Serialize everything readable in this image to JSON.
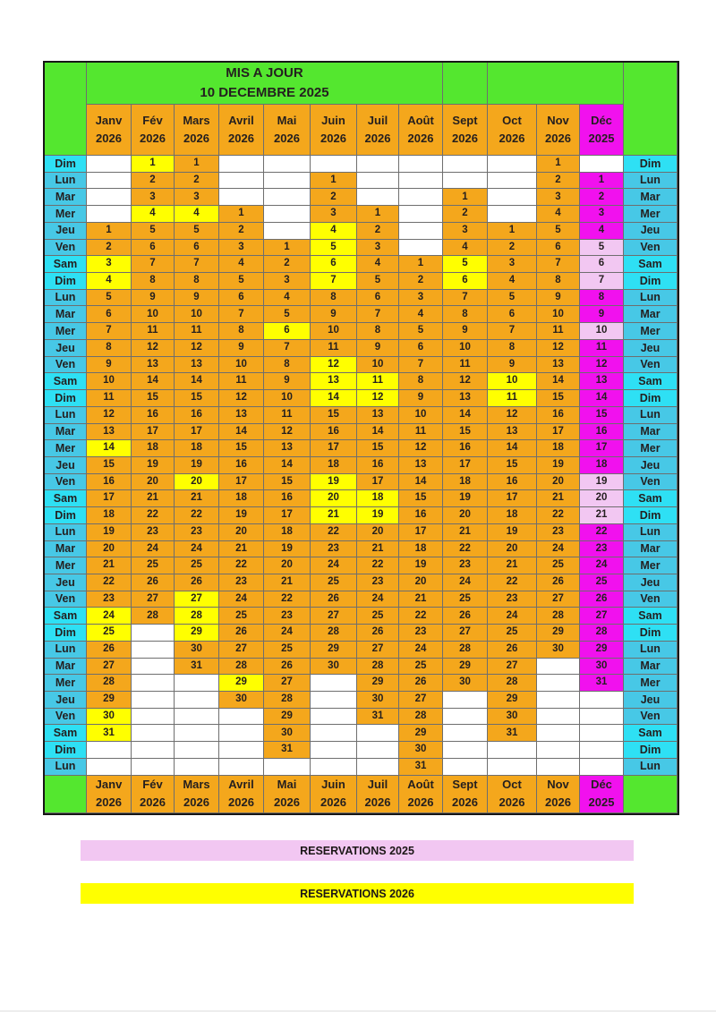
{
  "header": {
    "title_line1": "MIS A JOUR",
    "title_line2": "10 DECEMBRE 2025"
  },
  "months": [
    {
      "name": "Janv",
      "year": "2026",
      "bg": "orange"
    },
    {
      "name": "Fév",
      "year": "2026",
      "bg": "orange"
    },
    {
      "name": "Mars",
      "year": "2026",
      "bg": "orange"
    },
    {
      "name": "Avril",
      "year": "2026",
      "bg": "orange"
    },
    {
      "name": "Mai",
      "year": "2026",
      "bg": "orange"
    },
    {
      "name": "Juin",
      "year": "2026",
      "bg": "orange"
    },
    {
      "name": "Juil",
      "year": "2026",
      "bg": "orange"
    },
    {
      "name": "Août",
      "year": "2026",
      "bg": "orange"
    },
    {
      "name": "Sept",
      "year": "2026",
      "bg": "orange"
    },
    {
      "name": "Oct",
      "year": "2026",
      "bg": "orange"
    },
    {
      "name": "Nov",
      "year": "2026",
      "bg": "orange"
    },
    {
      "name": "Déc",
      "year": "2025",
      "bg": "magenta"
    }
  ],
  "color_legend_codes": {
    "o": "orange available 2026",
    "y": "yellow reservation 2026",
    "m": "magenta december 2025",
    "p": "light pink reservation 2025",
    "empty": "white out of month"
  },
  "rows": [
    {
      "d": "Dim",
      "c": [
        "",
        "1y",
        "1o",
        "",
        "",
        "",
        "",
        "",
        "",
        "",
        "1o",
        ""
      ]
    },
    {
      "d": "Lun",
      "c": [
        "",
        "2o",
        "2o",
        "",
        "",
        "1o",
        "",
        "",
        "",
        "",
        "2o",
        "1m"
      ]
    },
    {
      "d": "Mar",
      "c": [
        "",
        "3o",
        "3o",
        "",
        "",
        "2o",
        "",
        "",
        "1o",
        "",
        "3o",
        "2m"
      ]
    },
    {
      "d": "Mer",
      "c": [
        "",
        "4y",
        "4y",
        "1o",
        "",
        "3o",
        "1o",
        "",
        "2o",
        "",
        "4o",
        "3m"
      ]
    },
    {
      "d": "Jeu",
      "c": [
        "1o",
        "5o",
        "5o",
        "2o",
        "",
        "4y",
        "2o",
        "",
        "3o",
        "1o",
        "5o",
        "4m"
      ]
    },
    {
      "d": "Ven",
      "c": [
        "2o",
        "6o",
        "6o",
        "3o",
        "1o",
        "5y",
        "3o",
        "",
        "4o",
        "2o",
        "6o",
        "5p"
      ]
    },
    {
      "d": "Sam",
      "c": [
        "3y",
        "7o",
        "7o",
        "4o",
        "2o",
        "6y",
        "4o",
        "1o",
        "5y",
        "3o",
        "7o",
        "6p"
      ]
    },
    {
      "d": "Dim",
      "c": [
        "4y",
        "8o",
        "8o",
        "5o",
        "3o",
        "7y",
        "5o",
        "2o",
        "6y",
        "4o",
        "8o",
        "7p"
      ]
    },
    {
      "d": "Lun",
      "c": [
        "5o",
        "9o",
        "9o",
        "6o",
        "4o",
        "8o",
        "6o",
        "3o",
        "7o",
        "5o",
        "9o",
        "8m"
      ]
    },
    {
      "d": "Mar",
      "c": [
        "6o",
        "10o",
        "10o",
        "7o",
        "5o",
        "9o",
        "7o",
        "4o",
        "8o",
        "6o",
        "10o",
        "9m"
      ]
    },
    {
      "d": "Mer",
      "c": [
        "7o",
        "11o",
        "11o",
        "8o",
        "6y",
        "10o",
        "8o",
        "5o",
        "9o",
        "7o",
        "11o",
        "10p"
      ]
    },
    {
      "d": "Jeu",
      "c": [
        "8o",
        "12o",
        "12o",
        "9o",
        "7o",
        "11o",
        "9o",
        "6o",
        "10o",
        "8o",
        "12o",
        "11m"
      ]
    },
    {
      "d": "Ven",
      "c": [
        "9o",
        "13o",
        "13o",
        "10o",
        "8o",
        "12y",
        "10o",
        "7o",
        "11o",
        "9o",
        "13o",
        "12m"
      ]
    },
    {
      "d": "Sam",
      "c": [
        "10o",
        "14o",
        "14o",
        "11o",
        "9o",
        "13y",
        "11y",
        "8o",
        "12o",
        "10y",
        "14o",
        "13m"
      ]
    },
    {
      "d": "Dim",
      "c": [
        "11o",
        "15o",
        "15o",
        "12o",
        "10o",
        "14y",
        "12y",
        "9o",
        "13o",
        "11y",
        "15o",
        "14m"
      ]
    },
    {
      "d": "Lun",
      "c": [
        "12o",
        "16o",
        "16o",
        "13o",
        "11o",
        "15o",
        "13o",
        "10o",
        "14o",
        "12o",
        "16o",
        "15m"
      ]
    },
    {
      "d": "Mar",
      "c": [
        "13o",
        "17o",
        "17o",
        "14o",
        "12o",
        "16o",
        "14o",
        "11o",
        "15o",
        "13o",
        "17o",
        "16m"
      ]
    },
    {
      "d": "Mer",
      "c": [
        "14y",
        "18o",
        "18o",
        "15o",
        "13o",
        "17o",
        "15o",
        "12o",
        "16o",
        "14o",
        "18o",
        "17m"
      ]
    },
    {
      "d": "Jeu",
      "c": [
        "15o",
        "19o",
        "19o",
        "16o",
        "14o",
        "18o",
        "16o",
        "13o",
        "17o",
        "15o",
        "19o",
        "18m"
      ]
    },
    {
      "d": "Ven",
      "c": [
        "16o",
        "20o",
        "20y",
        "17o",
        "15o",
        "19y",
        "17o",
        "14o",
        "18o",
        "16o",
        "20o",
        "19p"
      ]
    },
    {
      "d": "Sam",
      "c": [
        "17o",
        "21o",
        "21o",
        "18o",
        "16o",
        "20y",
        "18y",
        "15o",
        "19o",
        "17o",
        "21o",
        "20p"
      ]
    },
    {
      "d": "Dim",
      "c": [
        "18o",
        "22o",
        "22o",
        "19o",
        "17o",
        "21y",
        "19y",
        "16o",
        "20o",
        "18o",
        "22o",
        "21p"
      ]
    },
    {
      "d": "Lun",
      "c": [
        "19o",
        "23o",
        "23o",
        "20o",
        "18o",
        "22o",
        "20o",
        "17o",
        "21o",
        "19o",
        "23o",
        "22m"
      ]
    },
    {
      "d": "Mar",
      "c": [
        "20o",
        "24o",
        "24o",
        "21o",
        "19o",
        "23o",
        "21o",
        "18o",
        "22o",
        "20o",
        "24o",
        "23m"
      ]
    },
    {
      "d": "Mer",
      "c": [
        "21o",
        "25o",
        "25o",
        "22o",
        "20o",
        "24o",
        "22o",
        "19o",
        "23o",
        "21o",
        "25o",
        "24m"
      ]
    },
    {
      "d": "Jeu",
      "c": [
        "22o",
        "26o",
        "26o",
        "23o",
        "21o",
        "25o",
        "23o",
        "20o",
        "24o",
        "22o",
        "26o",
        "25m"
      ]
    },
    {
      "d": "Ven",
      "c": [
        "23o",
        "27o",
        "27y",
        "24o",
        "22o",
        "26o",
        "24o",
        "21o",
        "25o",
        "23o",
        "27o",
        "26m"
      ]
    },
    {
      "d": "Sam",
      "c": [
        "24y",
        "28o",
        "28y",
        "25o",
        "23o",
        "27o",
        "25o",
        "22o",
        "26o",
        "24o",
        "28o",
        "27m"
      ]
    },
    {
      "d": "Dim",
      "c": [
        "25y",
        "",
        "29y",
        "26o",
        "24o",
        "28o",
        "26o",
        "23o",
        "27o",
        "25o",
        "29o",
        "28m"
      ]
    },
    {
      "d": "Lun",
      "c": [
        "26o",
        "",
        "30o",
        "27o",
        "25o",
        "29o",
        "27o",
        "24o",
        "28o",
        "26o",
        "30o",
        "29m"
      ]
    },
    {
      "d": "Mar",
      "c": [
        "27o",
        "",
        "31o",
        "28o",
        "26o",
        "30o",
        "28o",
        "25o",
        "29o",
        "27o",
        "",
        "30m"
      ]
    },
    {
      "d": "Mer",
      "c": [
        "28o",
        "",
        "",
        "29y",
        "27o",
        "",
        "29o",
        "26o",
        "30o",
        "28o",
        "",
        "31m"
      ]
    },
    {
      "d": "Jeu",
      "c": [
        "29o",
        "",
        "",
        "30o",
        "28o",
        "",
        "30o",
        "27o",
        "",
        "29o",
        "",
        ""
      ]
    },
    {
      "d": "Ven",
      "c": [
        "30y",
        "",
        "",
        "",
        "29o",
        "",
        "31o",
        "28o",
        "",
        "30o",
        "",
        ""
      ]
    },
    {
      "d": "Sam",
      "c": [
        "31y",
        "",
        "",
        "",
        "30o",
        "",
        "",
        "29o",
        "",
        "31o",
        "",
        ""
      ]
    },
    {
      "d": "Dim",
      "c": [
        "",
        "",
        "",
        "",
        "31o",
        "",
        "",
        "30o",
        "",
        "",
        "",
        ""
      ]
    },
    {
      "d": "Lun",
      "c": [
        "",
        "",
        "",
        "",
        "",
        "",
        "",
        "31o",
        "",
        "",
        "",
        ""
      ]
    }
  ],
  "legend": {
    "items": [
      {
        "label": "RESERVATIONS 2025",
        "color": "#f2c7f2"
      },
      {
        "label": "RESERVATIONS 2026",
        "color": "#ffff00"
      }
    ]
  },
  "colors": {
    "green": "#54e72f",
    "orange": "#f4a71c",
    "yellow": "#ffff00",
    "magenta": "#f111ee",
    "pink_light": "#f2c7f2",
    "cyan_weekend": "#2ee0f4",
    "cyan_weekday": "#47c8e6",
    "text": "#241f1f",
    "grid_line": "#6e6e6e",
    "outer_border": "#161616",
    "legend_2025_bg": "#f2c7f2",
    "legend_2026_bg": "#ffff00"
  }
}
